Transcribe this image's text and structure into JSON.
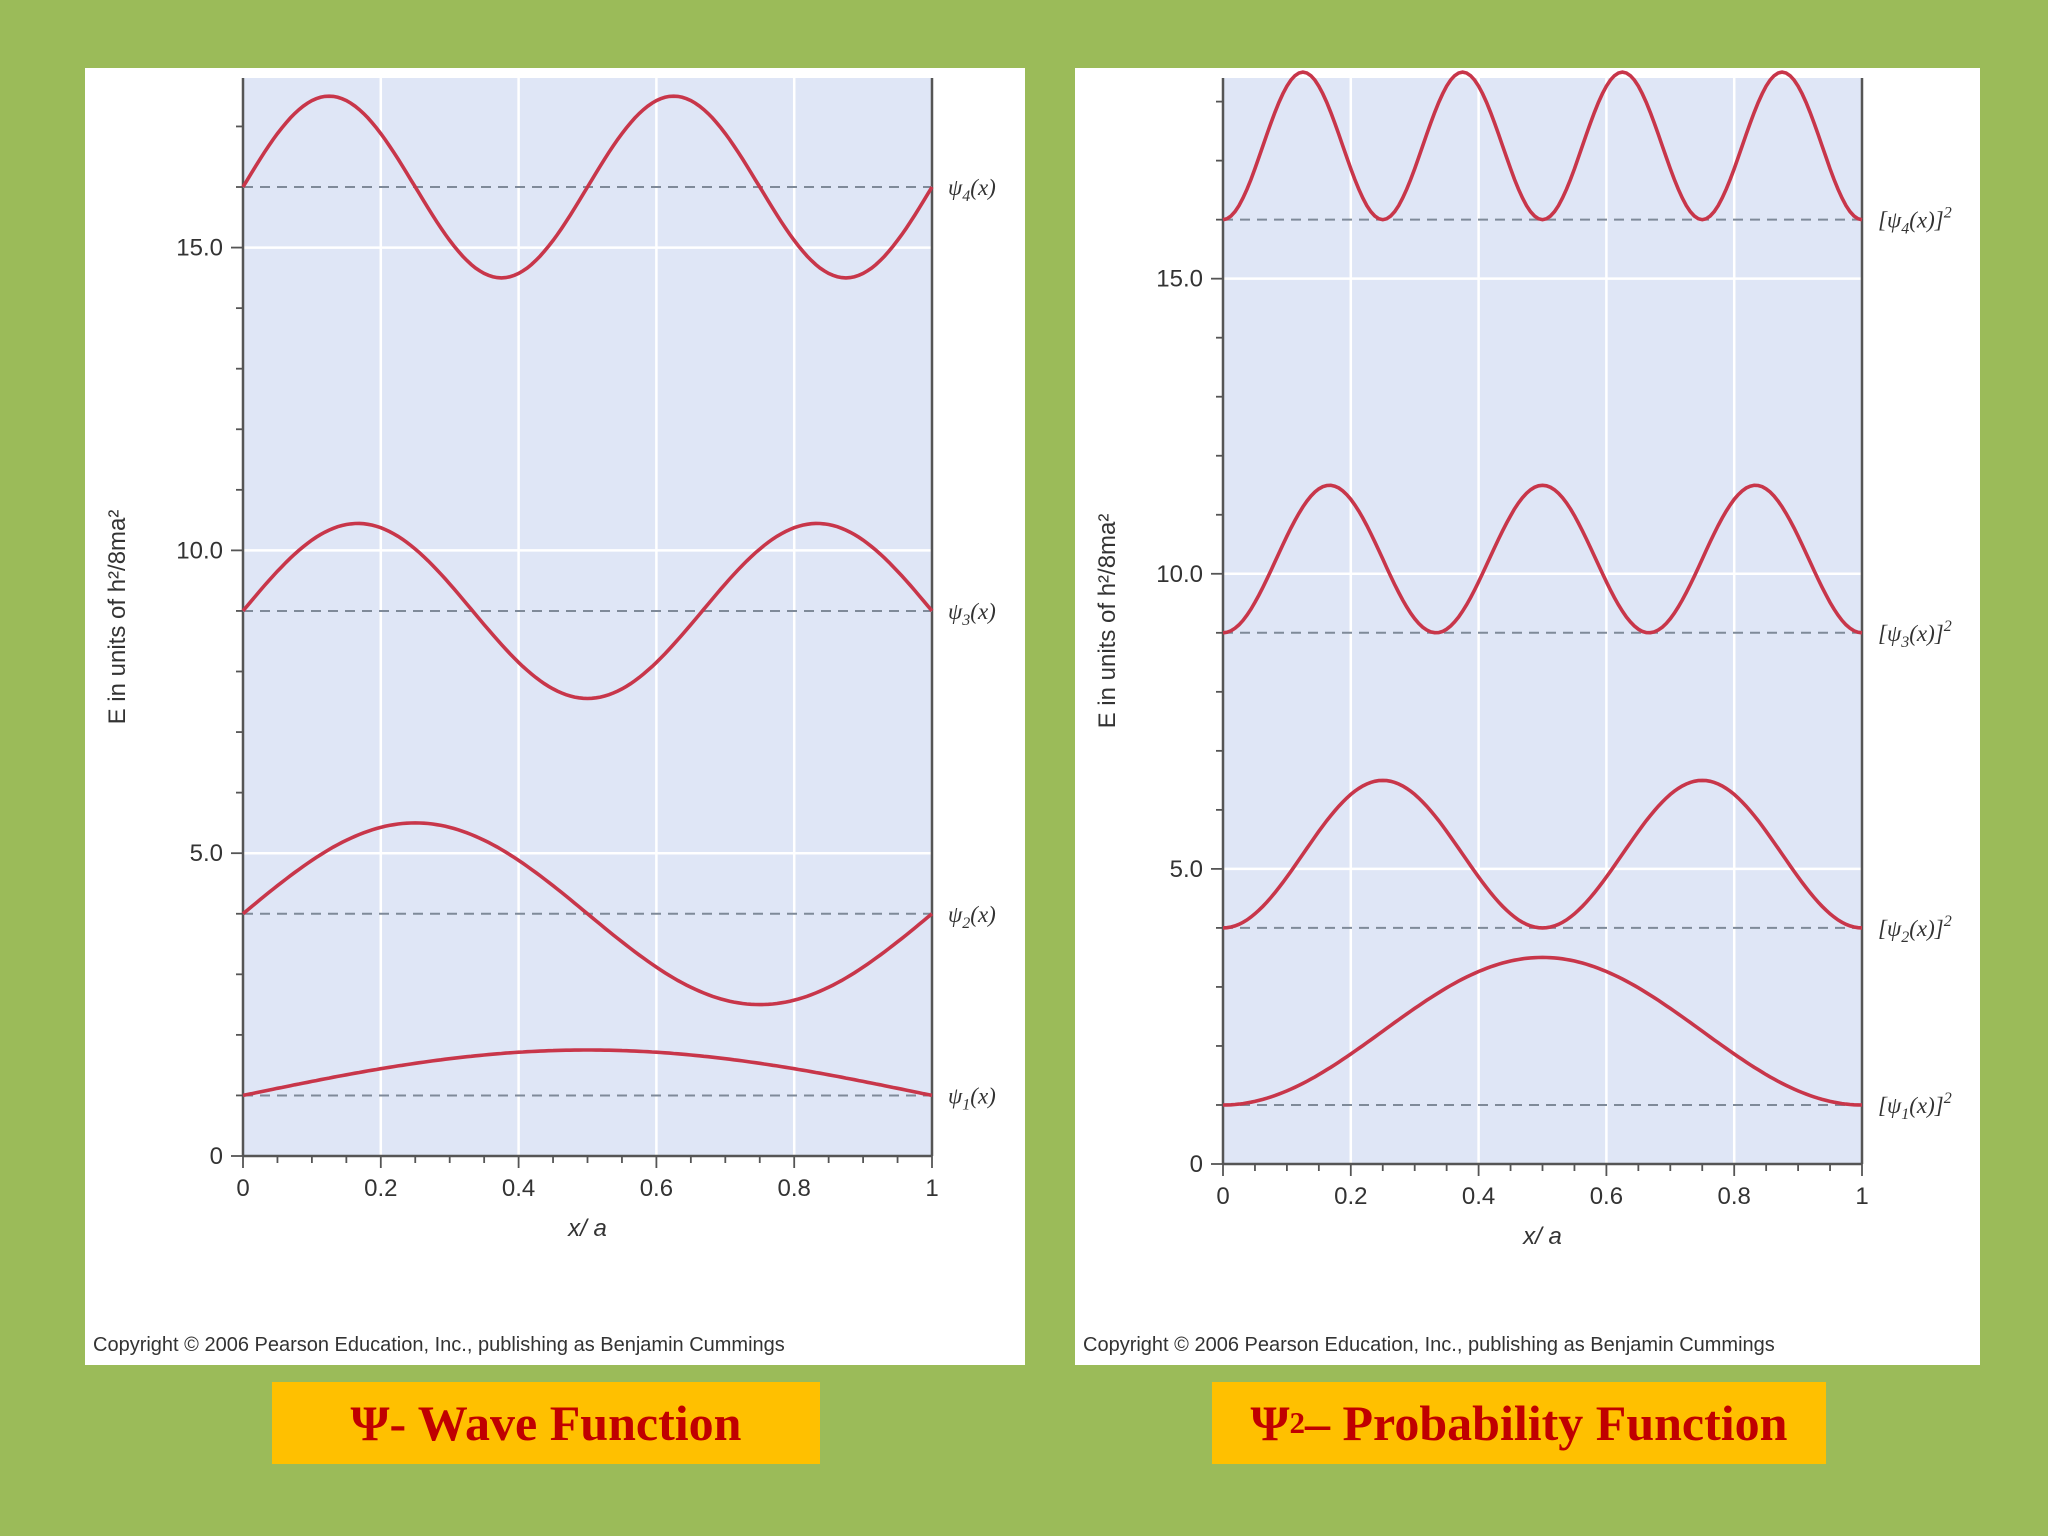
{
  "colors": {
    "background": "#9bbb59",
    "panel": "#ffffff",
    "plot_area": "#dfe6f6",
    "grid": "#ffffff",
    "curve": "#c8364a",
    "baseline": "#7f8a99",
    "caption_bg": "#ffc000",
    "caption_text": "#c00000"
  },
  "captions": {
    "left_symbol": "Ψ",
    "left_text": "- Wave Function",
    "right_symbol": "Ψ",
    "right_sup": "2",
    "right_text": " – Probability Function"
  },
  "chart_data": [
    {
      "type": "line",
      "title": "",
      "xlabel": "x/ a",
      "ylabel": "E in units of h²/8ma²",
      "xlim": [
        0,
        1
      ],
      "ylim": [
        0,
        17.8
      ],
      "xticks": [
        0,
        0.2,
        0.4,
        0.6,
        0.8,
        1
      ],
      "xtick_labels": [
        "0",
        "0.2",
        "0.4",
        "0.6",
        "0.8",
        "1"
      ],
      "yticks": [
        0,
        5,
        10,
        15
      ],
      "ytick_labels": [
        "0",
        "5.0",
        "10.0",
        "15.0"
      ],
      "grid": true,
      "copyright": "Copyright © 2006 Pearson Education, Inc., publishing as Benjamin Cummings",
      "x": [
        0,
        0.125,
        0.25,
        0.375,
        0.5,
        0.625,
        0.75,
        0.875,
        1
      ],
      "series": [
        {
          "name": "ψ1(x)",
          "label_text": "ψ",
          "label_sub": "1",
          "label_tail": "(x)",
          "level": 1,
          "squared": false,
          "values": [
            1.0,
            1.57,
            2.06,
            2.39,
            2.5,
            2.39,
            2.06,
            1.57,
            1.0
          ]
        },
        {
          "name": "ψ2(x)",
          "label_text": "ψ",
          "label_sub": "2",
          "label_tail": "(x)",
          "level": 4,
          "squared": false,
          "values": [
            4.0,
            5.06,
            5.5,
            5.06,
            4.0,
            2.94,
            2.5,
            2.94,
            4.0
          ]
        },
        {
          "name": "ψ3(x)",
          "label_text": "ψ",
          "label_sub": "3",
          "label_tail": "(x)",
          "level": 9,
          "squared": false,
          "values": [
            9.0,
            10.39,
            10.06,
            8.43,
            7.5,
            8.43,
            10.06,
            10.39,
            9.0
          ]
        },
        {
          "name": "ψ4(x)",
          "label_text": "ψ",
          "label_sub": "4",
          "label_tail": "(x)",
          "level": 16,
          "squared": false,
          "values": [
            16.0,
            17.5,
            16.0,
            14.5,
            16.0,
            17.5,
            16.0,
            14.5,
            16.0
          ]
        }
      ]
    },
    {
      "type": "line",
      "title": "",
      "xlabel": "x/ a",
      "ylabel": "E in units of h²/8ma²",
      "xlim": [
        0,
        1
      ],
      "ylim": [
        0,
        18.4
      ],
      "xticks": [
        0,
        0.2,
        0.4,
        0.6,
        0.8,
        1
      ],
      "xtick_labels": [
        "0",
        "0.2",
        "0.4",
        "0.6",
        "0.8",
        "1"
      ],
      "yticks": [
        0,
        5,
        10,
        15
      ],
      "ytick_labels": [
        "0",
        "5.0",
        "10.0",
        "15.0"
      ],
      "grid": true,
      "copyright": "Copyright © 2006 Pearson Education, Inc., publishing as Benjamin Cummings",
      "x": [
        0,
        0.125,
        0.25,
        0.375,
        0.5,
        0.625,
        0.75,
        0.875,
        1
      ],
      "series": [
        {
          "name": "[ψ1(x)]2",
          "label_text": "[ψ",
          "label_sub": "1",
          "label_tail": "(x)]",
          "label_sup": "2",
          "level": 1,
          "squared": true,
          "values": [
            1.0,
            1.37,
            2.25,
            3.13,
            3.5,
            3.13,
            2.25,
            1.37,
            1.0
          ]
        },
        {
          "name": "[ψ2(x)]2",
          "label_text": "[ψ",
          "label_sub": "2",
          "label_tail": "(x)]",
          "label_sup": "2",
          "level": 4,
          "squared": true,
          "values": [
            4.0,
            5.25,
            6.5,
            5.25,
            4.0,
            5.25,
            6.5,
            5.25,
            4.0
          ]
        },
        {
          "name": "[ψ3(x)]2",
          "label_text": "[ψ",
          "label_sub": "3",
          "label_tail": "(x)]",
          "label_sup": "2",
          "level": 9,
          "squared": true,
          "values": [
            9.0,
            11.13,
            10.25,
            9.37,
            11.5,
            9.37,
            10.25,
            11.13,
            9.0
          ]
        },
        {
          "name": "[ψ4(x)]2",
          "label_text": "[ψ",
          "label_sub": "4",
          "label_tail": "(x)]",
          "label_sup": "2",
          "level": 16,
          "squared": true,
          "values": [
            16.0,
            18.5,
            16.0,
            18.5,
            16.0,
            18.5,
            16.0,
            18.5,
            16.0
          ]
        }
      ]
    }
  ]
}
